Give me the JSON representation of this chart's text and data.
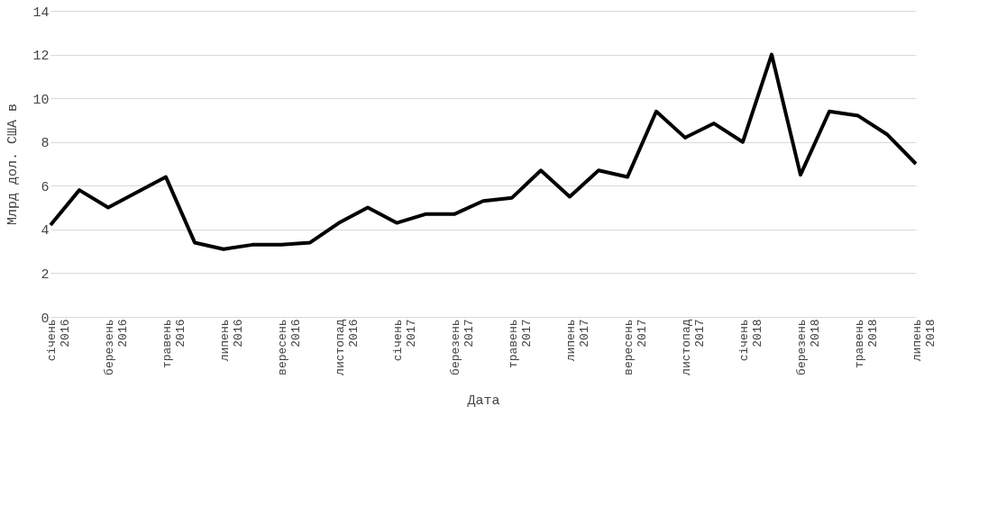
{
  "chart_data": {
    "type": "line",
    "xlabel": "Дата",
    "ylabel": "Млрд дол. США в",
    "categories": [
      "січень 2016",
      null,
      "березень 2016",
      null,
      "травень 2016",
      null,
      "липень 2016",
      null,
      "вересень 2016",
      null,
      "листопад 2016",
      null,
      "січень 2017",
      null,
      "березень 2017",
      null,
      "травень 2017",
      null,
      "липень 2017",
      null,
      "вересень 2017",
      null,
      "листопад 2017",
      null,
      "січень 2018",
      null,
      "березень 2018",
      null,
      "травень 2018",
      null,
      "липень 2018"
    ],
    "series": [
      {
        "color": "#000000",
        "values": [
          4.2,
          5.8,
          5.0,
          5.7,
          6.4,
          3.4,
          3.1,
          3.3,
          3.3,
          3.4,
          4.3,
          5.0,
          4.3,
          4.7,
          4.7,
          5.3,
          5.45,
          6.7,
          5.5,
          6.7,
          6.4,
          9.4,
          8.2,
          8.85,
          8.0,
          12.0,
          6.5,
          9.4,
          9.2,
          8.35,
          7.0
        ]
      }
    ],
    "ylim": [
      0,
      14
    ],
    "yticks": [
      0,
      2,
      4,
      6,
      8,
      10,
      12,
      14
    ],
    "grid": "y",
    "legend": false,
    "marker": "none",
    "line_style": "solid"
  }
}
